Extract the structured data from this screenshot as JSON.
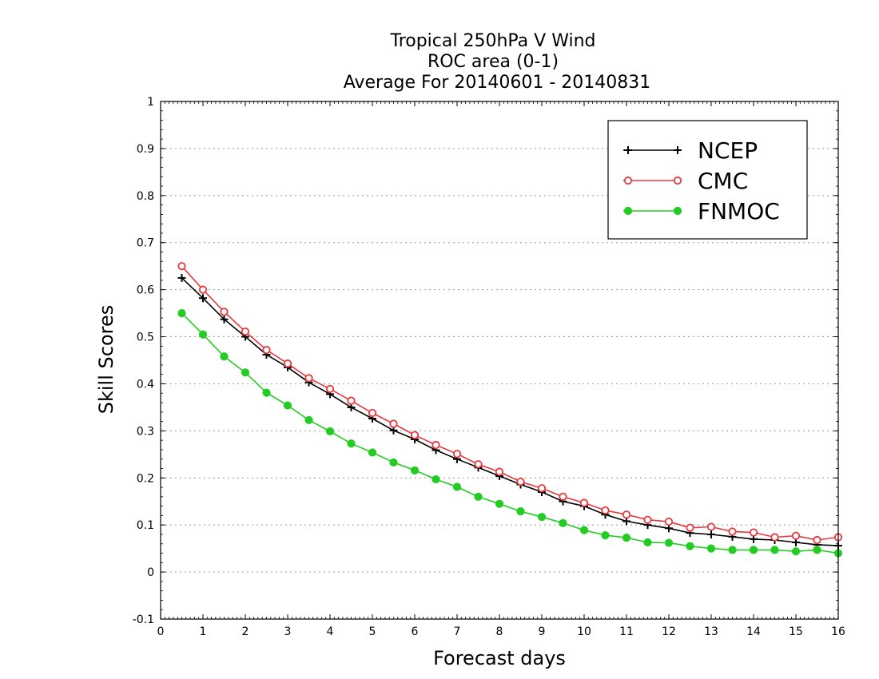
{
  "chart_data": {
    "type": "line",
    "title": [
      "Tropical 250hPa V Wind",
      "ROC area (0-1)",
      "Average For 20140601 - 20140831"
    ],
    "xlabel": "Forecast days",
    "ylabel": "Skill Scores",
    "xlim": [
      0,
      16
    ],
    "ylim": [
      -0.1,
      1
    ],
    "xticks": [
      0,
      1,
      2,
      3,
      4,
      5,
      6,
      7,
      8,
      9,
      10,
      11,
      12,
      13,
      14,
      15,
      16
    ],
    "yticks": [
      -0.1,
      0,
      0.1,
      0.2,
      0.3,
      0.4,
      0.5,
      0.6,
      0.7,
      0.8,
      0.9,
      1
    ],
    "ytick_labels": [
      "-0.1",
      "0",
      "0.1",
      "0.2",
      "0.3",
      "0.4",
      "0.5",
      "0.6",
      "0.7",
      "0.8",
      "0.9",
      "1"
    ],
    "grid": "horizontal-dotted",
    "legend_position": "top-right",
    "x": [
      0.5,
      1,
      1.5,
      2,
      2.5,
      3,
      3.5,
      4,
      4.5,
      5,
      5.5,
      6,
      6.5,
      7,
      7.5,
      8,
      8.5,
      9,
      9.5,
      10,
      10.5,
      11,
      11.5,
      12,
      12.5,
      13,
      13.5,
      14,
      14.5,
      15,
      15.5,
      16
    ],
    "series": [
      {
        "name": "NCEP",
        "color": "#000000",
        "marker": "plus",
        "values": [
          0.625,
          0.582,
          0.537,
          0.5,
          0.462,
          0.435,
          0.403,
          0.378,
          0.35,
          0.326,
          0.301,
          0.282,
          0.259,
          0.24,
          0.222,
          0.204,
          0.186,
          0.17,
          0.15,
          0.14,
          0.122,
          0.108,
          0.1,
          0.093,
          0.083,
          0.08,
          0.075,
          0.07,
          0.068,
          0.063,
          0.058,
          0.056
        ]
      },
      {
        "name": "CMC",
        "color": "#e8383d",
        "marker": "open-circle",
        "values": [
          0.65,
          0.6,
          0.553,
          0.511,
          0.472,
          0.443,
          0.412,
          0.389,
          0.364,
          0.338,
          0.315,
          0.291,
          0.27,
          0.251,
          0.229,
          0.213,
          0.192,
          0.178,
          0.16,
          0.147,
          0.131,
          0.122,
          0.111,
          0.107,
          0.094,
          0.096,
          0.086,
          0.084,
          0.074,
          0.077,
          0.068,
          0.074
        ]
      },
      {
        "name": "FNMOC",
        "color": "#22cc22",
        "marker": "filled-circle",
        "values": [
          0.55,
          0.505,
          0.458,
          0.424,
          0.381,
          0.354,
          0.323,
          0.299,
          0.273,
          0.254,
          0.233,
          0.216,
          0.197,
          0.181,
          0.16,
          0.145,
          0.129,
          0.117,
          0.104,
          0.089,
          0.078,
          0.073,
          0.063,
          0.062,
          0.055,
          0.05,
          0.047,
          0.047,
          0.047,
          0.044,
          0.047,
          0.04
        ]
      }
    ]
  }
}
